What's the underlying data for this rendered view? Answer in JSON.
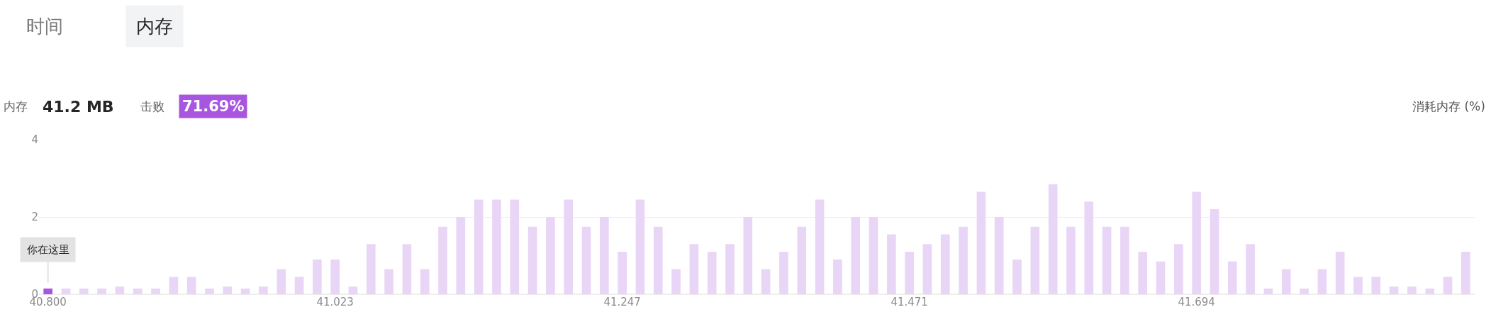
{
  "chart_data": {
    "type": "bar",
    "ylabel": "消耗内存 (%)",
    "categories": [
      "40.800",
      null,
      null,
      null,
      null,
      null,
      null,
      null,
      null,
      null,
      null,
      null,
      null,
      null,
      null,
      null,
      "41.023",
      null,
      null,
      null,
      null,
      null,
      null,
      null,
      null,
      null,
      null,
      null,
      null,
      null,
      null,
      null,
      "41.247",
      null,
      null,
      null,
      null,
      null,
      null,
      null,
      null,
      null,
      null,
      null,
      null,
      null,
      null,
      null,
      "41.471",
      null,
      null,
      null,
      null,
      null,
      null,
      null,
      null,
      null,
      null,
      null,
      null,
      null,
      null,
      null,
      "41.694",
      null,
      null,
      null,
      null,
      null,
      null,
      null,
      null,
      null,
      null,
      null,
      null,
      null,
      null,
      null
    ],
    "values": [
      0.15,
      0.15,
      0.15,
      0.15,
      0.2,
      0.15,
      0.15,
      0.45,
      0.45,
      0.15,
      0.2,
      0.15,
      0.2,
      0.65,
      0.45,
      0.9,
      0.9,
      0.2,
      1.3,
      0.65,
      1.3,
      0.65,
      1.75,
      2.0,
      2.45,
      2.45,
      2.45,
      1.75,
      2.0,
      2.45,
      1.75,
      2.0,
      1.1,
      2.45,
      1.75,
      0.65,
      1.3,
      1.1,
      1.3,
      2.0,
      0.65,
      1.1,
      1.75,
      2.45,
      0.9,
      2.0,
      2.0,
      1.55,
      1.1,
      1.3,
      1.55,
      1.75,
      2.65,
      2.0,
      0.9,
      1.75,
      2.85,
      1.75,
      2.4,
      1.75,
      1.75,
      1.1,
      0.85,
      1.3,
      2.65,
      2.2,
      0.85,
      1.3,
      0.15,
      0.65,
      0.15,
      0.65,
      1.1,
      0.45,
      0.45,
      0.2,
      0.2,
      0.15,
      0.45,
      1.1
    ],
    "colors": [
      "#a855e0",
      "#e9d6f6",
      "#e9d6f6",
      "#e9d6f6",
      "#e9d6f6",
      "#e9d6f6",
      "#e9d6f6",
      "#e9d6f6",
      "#e9d6f6",
      "#e9d6f6",
      "#e9d6f6",
      "#e9d6f6",
      "#e9d6f6",
      "#e9d6f6",
      "#e9d6f6",
      "#e9d6f6",
      "#e9d6f6",
      "#e9d6f6",
      "#e9d6f6",
      "#e9d6f6",
      "#e9d6f6",
      "#e9d6f6",
      "#e9d6f6",
      "#e9d6f6",
      "#e9d6f6",
      "#e9d6f6",
      "#e9d6f6",
      "#e9d6f6",
      "#e9d6f6",
      "#e9d6f6",
      "#e9d6f6",
      "#e9d6f6",
      "#e9d6f6",
      "#e9d6f6",
      "#e9d6f6",
      "#e9d6f6",
      "#e9d6f6",
      "#e9d6f6",
      "#e9d6f6",
      "#e9d6f6",
      "#e9d6f6",
      "#e9d6f6",
      "#e9d6f6",
      "#e9d6f6",
      "#e9d6f6",
      "#e9d6f6",
      "#e9d6f6",
      "#e9d6f6",
      "#e9d6f6",
      "#e9d6f6",
      "#e9d6f6",
      "#e9d6f6",
      "#e9d6f6",
      "#e9d6f6",
      "#e9d6f6",
      "#e9d6f6",
      "#e9d6f6",
      "#e9d6f6",
      "#e9d6f6",
      "#e9d6f6",
      "#e9d6f6",
      "#e9d6f6",
      "#e9d6f6",
      "#e9d6f6",
      "#e9d6f6",
      "#e9d6f6",
      "#e9d6f6",
      "#e9d6f6",
      "#e9d6f6",
      "#e9d6f6",
      "#e9d6f6",
      "#e9d6f6",
      "#e9d6f6",
      "#e9d6f6",
      "#e9d6f6",
      "#e9d6f6",
      "#e9d6f6",
      "#e9d6f6",
      "#e9d6f6",
      "#e9d6f6"
    ],
    "ylim": [
      0,
      4
    ],
    "yticks": [
      0,
      2,
      4
    ],
    "grid": "y",
    "legend": false,
    "annotations": [
      "时间",
      "内存",
      "内存",
      "41.2 MB",
      "击败",
      "71.69%",
      {
        "text": "你在这里",
        "x": "40.800",
        "y": 0.15
      }
    ]
  }
}
